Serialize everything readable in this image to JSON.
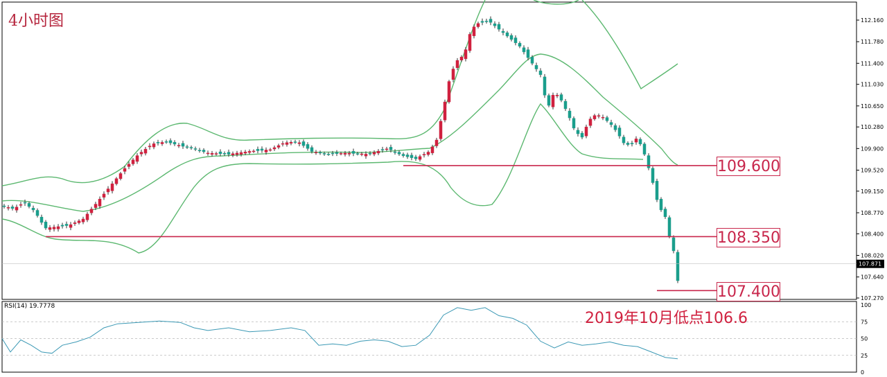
{
  "title": "4小时图",
  "annotation": "2019年10月低点106.6",
  "levels": [
    "109.600",
    "108.350",
    "107.400"
  ],
  "rsi_label": "RSI(14) 19.7778",
  "colors": {
    "bull": "#1a9e8c",
    "bear": "#d0213f",
    "band": "#5cb870",
    "level": "#c8264b",
    "rsi": "#3a98b4"
  },
  "chart_data": [
    {
      "type": "candlestick",
      "title": "4小时图",
      "ylim": [
        107.27,
        112.29
      ],
      "ytick_labels": [
        "112.160",
        "111.780",
        "111.400",
        "111.030",
        "110.650",
        "110.280",
        "109.900",
        "109.520",
        "109.150",
        "108.770",
        "108.400",
        "108.020",
        "107.640",
        "107.270"
      ],
      "current_price": "107.871",
      "horizontal_levels": [
        109.6,
        108.35,
        107.4
      ],
      "bands": [
        "upper",
        "middle",
        "lower"
      ]
    },
    {
      "type": "line",
      "name": "RSI(14)",
      "last_value": 19.7778,
      "ylim": [
        0,
        100
      ],
      "ytick_labels": [
        "100",
        "75",
        "50",
        "25",
        "0"
      ],
      "reference_levels": [
        75,
        50,
        25
      ]
    }
  ]
}
